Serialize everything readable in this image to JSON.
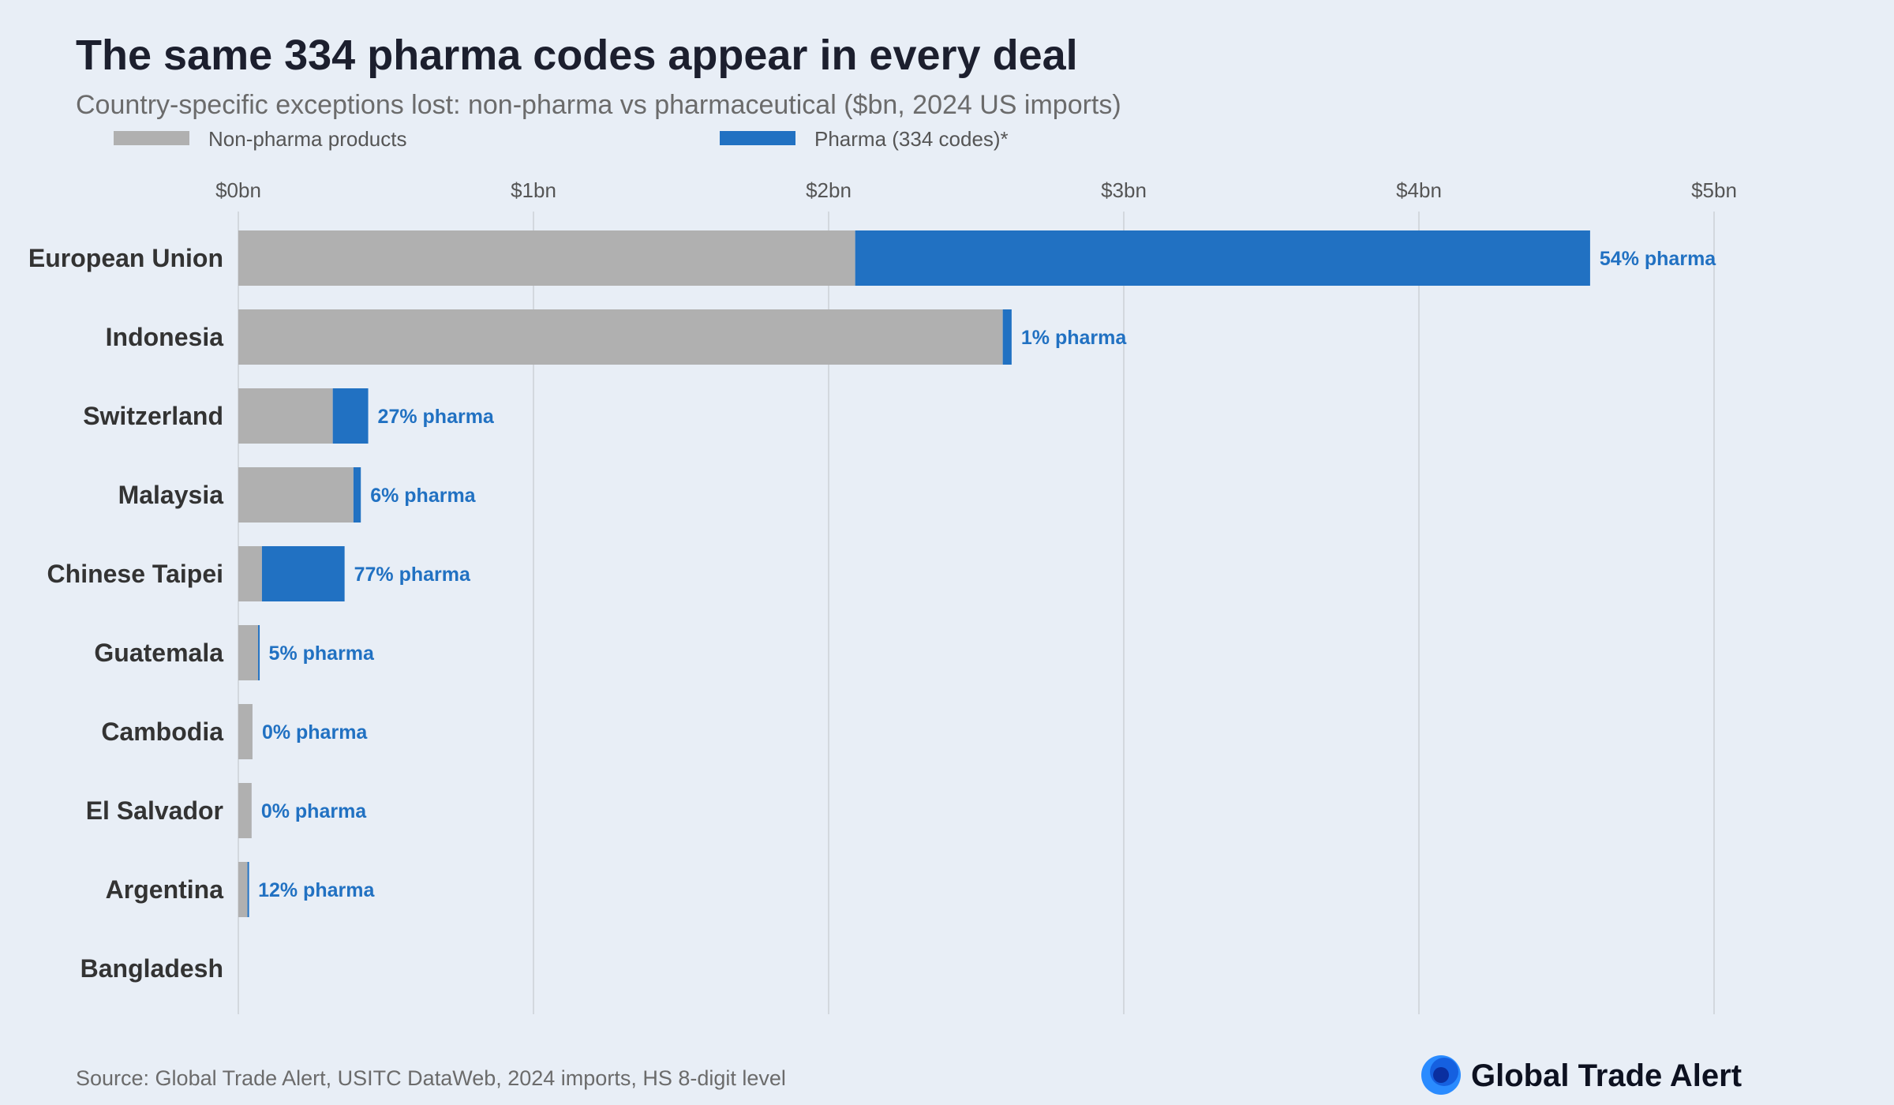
{
  "chart_data": {
    "type": "bar",
    "orientation": "horizontal",
    "stacked": true,
    "title": "The same 334 pharma codes appear in every deal",
    "subtitle": "Country-specific exceptions lost: non-pharma vs pharmaceutical ($bn, 2024 US imports)",
    "xlabel": "",
    "ylabel": "",
    "xlim": [
      0,
      5
    ],
    "x_ticks": [
      "$0bn",
      "$1bn",
      "$2bn",
      "$3bn",
      "$4bn",
      "$5bn"
    ],
    "grid": true,
    "legend_position": "top-left",
    "categories": [
      "European Union",
      "Indonesia",
      "Switzerland",
      "Malaysia",
      "Chinese Taipei",
      "Guatemala",
      "Cambodia",
      "El Salvador",
      "Argentina",
      "Bangladesh"
    ],
    "series": [
      {
        "name": "Non-pharma products",
        "color": "#b0b0b0",
        "values": [
          2.09,
          2.59,
          0.32,
          0.39,
          0.08,
          0.067,
          0.048,
          0.045,
          0.031,
          0
        ]
      },
      {
        "name": "Pharma (334 codes)*",
        "color": "#2171c2",
        "values": [
          2.49,
          0.03,
          0.12,
          0.025,
          0.28,
          0.004,
          0,
          0,
          0.004,
          0
        ]
      }
    ],
    "data_labels": [
      "54% pharma",
      "1% pharma",
      "27% pharma",
      "6% pharma",
      "77% pharma",
      "5% pharma",
      "0% pharma",
      "0% pharma",
      "12% pharma",
      ""
    ]
  },
  "source": "Source: Global Trade Alert, USITC DataWeb, 2024 imports, HS 8-digit level",
  "logo": {
    "text": "Global Trade Alert"
  }
}
